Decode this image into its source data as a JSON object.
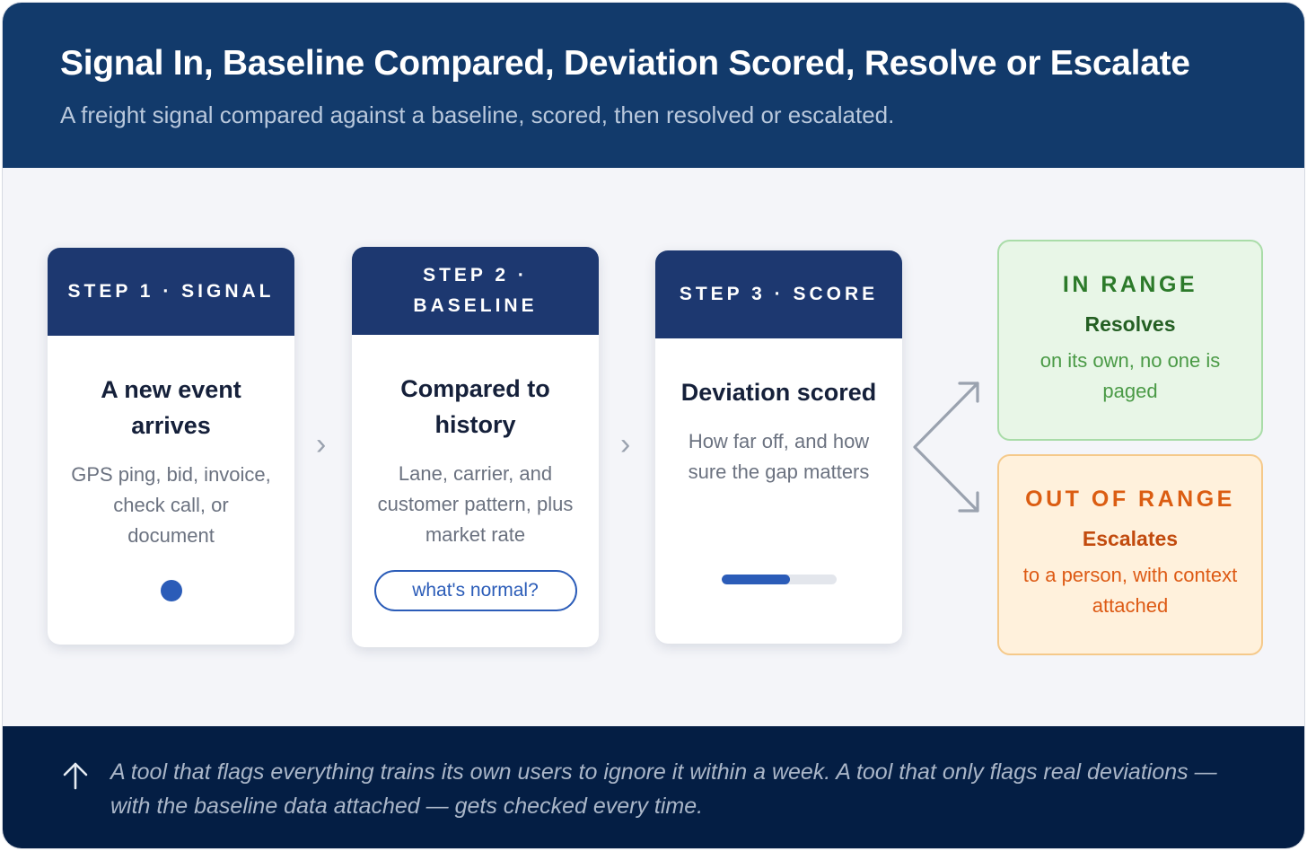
{
  "header": {
    "title": "Signal In, Baseline Compared, Deviation Scored, Resolve or Escalate",
    "subtitle": "A freight signal compared against a baseline, scored, then resolved or escalated."
  },
  "steps": [
    {
      "label": "STEP 1 · SIGNAL",
      "title": "A new event arrives",
      "description": "GPS ping, bid, invoice, check call, or document",
      "visual": "dot"
    },
    {
      "label": "STEP 2 · BASELINE",
      "title": "Compared to history",
      "description": "Lane, carrier, and customer pattern, plus market rate",
      "pill": "what's normal?"
    },
    {
      "label": "STEP 3 · SCORE",
      "title": "Deviation scored",
      "description": "How far off, and how sure the gap matters",
      "meter_level": 0.6
    }
  ],
  "connector_icons": [
    "chevron-right-icon",
    "chevron-right-icon"
  ],
  "outcomes": {
    "in_range": {
      "label": "IN RANGE",
      "heading": "Resolves",
      "description": "on its own, no one is paged"
    },
    "out_of_range": {
      "label": "OUT OF RANGE",
      "heading": "Escalates",
      "description": "to a person, with context attached"
    }
  },
  "footer": {
    "icon": "arrow-up-icon",
    "text": "A tool that flags everything trains its own users to ignore it within a week. A tool that only flags real deviations — with the baseline data attached — gets checked every time."
  },
  "colors": {
    "header_bg": "#123a6b",
    "card_header_bg": "#1d3870",
    "accent_blue": "#2b5cb8",
    "in_range_green": "#2c7a2a",
    "out_of_range_orange": "#db5d12",
    "footer_bg": "#041e44"
  }
}
